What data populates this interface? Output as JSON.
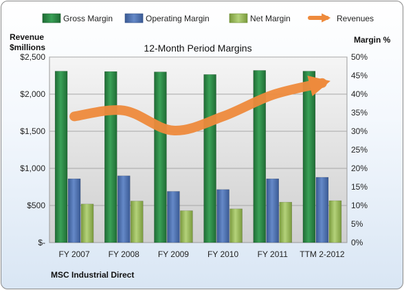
{
  "chart_data": {
    "type": "bar",
    "title": "12-Month Period Margins",
    "company": "MSC Industrial Direct",
    "ylabel_left": "Revenue\n$millions",
    "ylabel_right": "Margin %",
    "categories": [
      "FY 2007",
      "FY 2008",
      "FY 2009",
      "FY 2010",
      "FY 2011",
      "TTM 2-2012"
    ],
    "left_axis": {
      "min": 0,
      "max": 2500,
      "ticks": [
        0,
        500,
        1000,
        1500,
        2000,
        2500
      ],
      "tick_labels": [
        "$-",
        "$500",
        "$1,000",
        "$1,500",
        "$2,000",
        "$2,500"
      ]
    },
    "right_axis": {
      "min": 0,
      "max": 50,
      "ticks": [
        0,
        5,
        10,
        15,
        20,
        25,
        30,
        35,
        40,
        45,
        50
      ],
      "tick_labels": [
        "0%",
        "5%",
        "10%",
        "15%",
        "20%",
        "25%",
        "30%",
        "35%",
        "40%",
        "45%",
        "50%"
      ]
    },
    "series": [
      {
        "name": "Gross Margin",
        "axis": "right",
        "kind": "bar",
        "color": "#2e8a47",
        "values": [
          46.2,
          46.1,
          46.0,
          45.3,
          46.4,
          46.2
        ]
      },
      {
        "name": "Operating Margin",
        "axis": "right",
        "kind": "bar",
        "color": "#4f74b4",
        "values": [
          17.2,
          18.0,
          13.8,
          14.3,
          17.2,
          17.6
        ]
      },
      {
        "name": "Net Margin",
        "axis": "right",
        "kind": "bar",
        "color": "#9bbb59",
        "values": [
          10.4,
          11.2,
          8.6,
          9.1,
          10.9,
          11.3
        ]
      },
      {
        "name": "Revenues",
        "axis": "left",
        "kind": "line",
        "color": "#ee8a3c",
        "values": [
          1700,
          1780,
          1510,
          1700,
          1990,
          2150
        ]
      }
    ],
    "grid": "horizontal",
    "legend": "top"
  }
}
